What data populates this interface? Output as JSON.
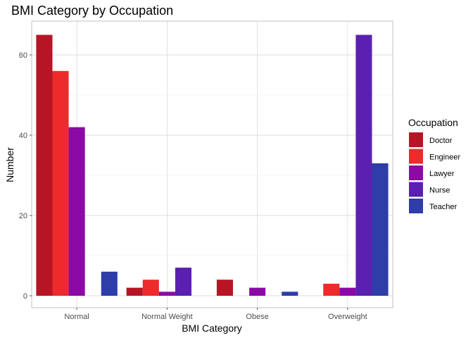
{
  "chart_data": {
    "type": "bar",
    "title": "BMI Category by Occupation",
    "xlabel": "BMI Category",
    "ylabel": "Number",
    "categories": [
      "Normal",
      "Normal Weight",
      "Obese",
      "Overweight"
    ],
    "ylim": [
      0,
      68
    ],
    "yticks": [
      0,
      20,
      40,
      60
    ],
    "grid": true,
    "legend": {
      "title": "Occupation",
      "position": "right"
    },
    "series": [
      {
        "name": "Doctor",
        "color": "#B71525",
        "values": [
          65,
          2,
          4,
          0
        ]
      },
      {
        "name": "Engineer",
        "color": "#EE2A2C",
        "values": [
          56,
          4,
          0,
          3
        ]
      },
      {
        "name": "Lawyer",
        "color": "#8B0AA5",
        "values": [
          42,
          1,
          2,
          2
        ]
      },
      {
        "name": "Nurse",
        "color": "#5B20B0",
        "values": [
          0,
          7,
          0,
          65
        ]
      },
      {
        "name": "Teacher",
        "color": "#2E3DA8",
        "values": [
          6,
          0,
          1,
          33
        ]
      }
    ]
  }
}
